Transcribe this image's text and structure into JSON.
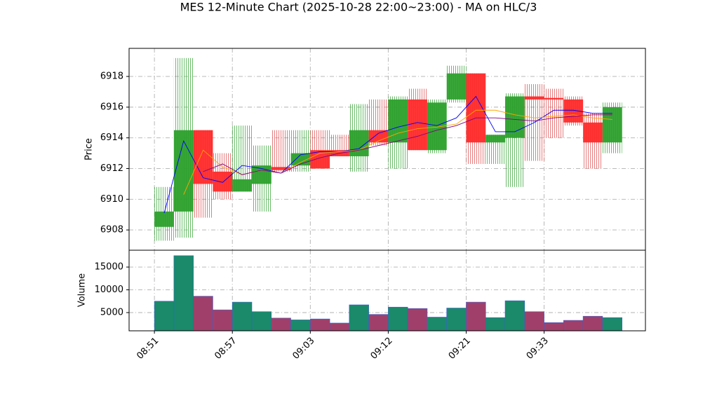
{
  "chart_data": {
    "type": "candlestick",
    "title": "MES 12-Minute Chart (2025-10-28 22:00~23:00) - MA on HLC/3",
    "y_label": "Price",
    "volume_label": "Volume",
    "open": [
      6908.2,
      6909.2,
      6914.5,
      6911.8,
      6910.5,
      6911.0,
      6912.1,
      6912.2,
      6913.2,
      6913.2,
      6912.8,
      6914.5,
      6913.7,
      6916.5,
      6913.2,
      6916.5,
      6918.2,
      6913.7,
      6914.0,
      6916.7,
      6916.6,
      6916.5,
      6915.0,
      6913.7
    ],
    "high": [
      6910.8,
      6919.2,
      6914.5,
      6913.0,
      6914.8,
      6913.5,
      6914.5,
      6914.5,
      6914.5,
      6914.2,
      6916.2,
      6916.5,
      6916.7,
      6917.2,
      6916.5,
      6918.7,
      6918.2,
      6914.2,
      6916.9,
      6917.5,
      6917.2,
      6916.7,
      6915.6,
      6916.3
    ],
    "low": [
      6907.3,
      6907.5,
      6908.8,
      6910.0,
      6910.5,
      6909.2,
      6911.8,
      6911.8,
      6912.0,
      6912.8,
      6911.8,
      6913.5,
      6912.0,
      6913.2,
      6913.0,
      6916.3,
      6912.3,
      6912.3,
      6910.8,
      6912.5,
      6914.0,
      6914.8,
      6912.0,
      6913.0
    ],
    "close": [
      6909.2,
      6914.5,
      6911.0,
      6910.5,
      6911.3,
      6912.2,
      6911.9,
      6913.0,
      6912.0,
      6912.8,
      6914.5,
      6913.7,
      6916.5,
      6913.2,
      6916.3,
      6918.2,
      6913.7,
      6914.2,
      6916.7,
      6916.5,
      6916.5,
      6915.0,
      6913.7,
      6916.0
    ],
    "volume": [
      7500,
      17500,
      8600,
      5600,
      7300,
      5200,
      3800,
      3400,
      3600,
      2700,
      6700,
      4600,
      6200,
      5900,
      4000,
      6000,
      7300,
      3900,
      7600,
      5200,
      2800,
      3300,
      4200,
      3900
    ],
    "up_color": "#2ca02c",
    "down_color": "#ff2a2a",
    "volume_up_color": "#1a8a6a",
    "volume_down_color": "#a0406a",
    "ma": [
      {
        "color": "#0000ff",
        "values": [
          6909.1,
          6913.8,
          6911.4,
          6911.1,
          6912.2,
          6912.0,
          6911.7,
          6912.9,
          6913.1,
          6913.1,
          6913.3,
          6914.3,
          6914.7,
          6915.0,
          6914.8,
          6915.3,
          6916.7,
          6914.4,
          6914.4,
          6915.0,
          6915.8,
          6915.8,
          6915.6,
          6915.6
        ]
      },
      {
        "color": "#ffa500",
        "values": [
          null,
          6910.3,
          6913.2,
          6912.1,
          6911.6,
          6911.9,
          6911.7,
          6912.4,
          6913.0,
          6913.1,
          6913.2,
          6913.8,
          6914.3,
          6914.6,
          6914.7,
          6914.9,
          6915.8,
          6915.8,
          6915.5,
          6915.3,
          6915.4,
          6915.5,
          6915.3,
          6915.2
        ]
      },
      {
        "color": "#800080",
        "values": [
          null,
          null,
          6911.8,
          6912.3,
          6911.6,
          6911.9,
          6911.7,
          6912.3,
          6912.7,
          6913.0,
          6913.2,
          6913.5,
          6913.8,
          6914.1,
          6914.5,
          6914.8,
          6915.3,
          6915.3,
          6915.2,
          6915.1,
          6915.3,
          6915.4,
          6915.5,
          6915.5
        ]
      }
    ],
    "xlim": [
      -1.3,
      25.2
    ],
    "xticks": [
      {
        "value": 0,
        "label": "08:51"
      },
      {
        "value": 4,
        "label": "08:57"
      },
      {
        "value": 8,
        "label": "09:03"
      },
      {
        "value": 12,
        "label": "09:12"
      },
      {
        "value": 16,
        "label": "09:21"
      },
      {
        "value": 20,
        "label": "09:33"
      }
    ],
    "ylim": [
      6906.68,
      6919.83
    ],
    "yticks": [
      6908,
      6910,
      6912,
      6914,
      6916,
      6918
    ],
    "volume_ylim": [
      1000,
      18700
    ],
    "volume_yticks": [
      5000,
      10000,
      15000
    ],
    "grid": true
  }
}
